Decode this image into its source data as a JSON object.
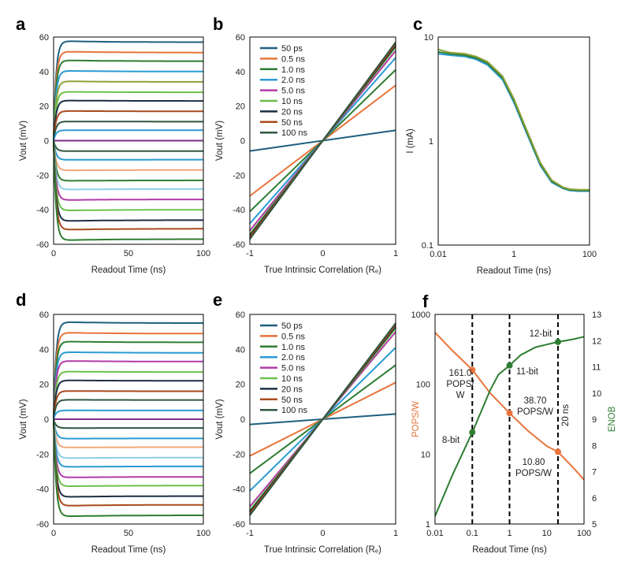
{
  "colors": {
    "ps50": "#1f5f7f",
    "ns05": "#e8743b",
    "ns1": "#2e7d32",
    "ns2": "#2b9bd3",
    "ns5": "#b23aa8",
    "ns10": "#6cc04a",
    "ns20": "#1b2f44",
    "ns50": "#a94a1c",
    "ns100": "#2f5640",
    "salmon": "#f2a77a",
    "lightblue": "#8fcfe8",
    "gold": "#8ea13a",
    "purple": "#7a2c8a",
    "orangeAxis": "#e8743b",
    "greenAxis": "#2e7d32",
    "dashed": "#000000"
  },
  "chart_data": [
    {
      "panel": "a",
      "type": "line",
      "xlabel": "Readout Time (ns)",
      "ylabel": "Vout (mV)",
      "xlim": [
        0,
        100
      ],
      "ylim": [
        -60,
        60
      ],
      "xticks": [
        "0",
        "50",
        "100"
      ],
      "yticks": [
        "-60",
        "-40",
        "-20",
        "0",
        "20",
        "40",
        "60"
      ],
      "settled_levels": [
        57,
        51,
        46,
        40,
        34,
        28,
        23,
        17,
        11,
        6,
        0,
        -6,
        -11,
        -17,
        -23,
        -28,
        -34,
        -40,
        -46,
        -51,
        -57
      ],
      "level_colors": [
        "ps50",
        "ns05",
        "ns1",
        "ns2",
        "gold",
        "ns10",
        "ns20",
        "ns50",
        "ns100",
        "ns2",
        "purple",
        "ns100",
        "ns2",
        "salmon",
        "ns1",
        "lightblue",
        "ns5",
        "ns10",
        "ns20",
        "ns50",
        "ns1"
      ]
    },
    {
      "panel": "b",
      "type": "line",
      "xlabel": "True Intrinsic Correlation (Rₑ)",
      "ylabel": "Vout (mV)",
      "xlim": [
        -1,
        1
      ],
      "ylim": [
        -60,
        60
      ],
      "xticks": [
        "-1",
        "0",
        "1"
      ],
      "yticks": [
        "-60",
        "-40",
        "-20",
        "0",
        "20",
        "40",
        "60"
      ],
      "legend_position": "top-left",
      "series": [
        {
          "name": "50 ps",
          "slope": 6,
          "color": "ps50"
        },
        {
          "name": "0.5 ns",
          "slope": 32,
          "color": "ns05"
        },
        {
          "name": "1.0 ns",
          "slope": 41,
          "color": "ns1"
        },
        {
          "name": "2.0 ns",
          "slope": 48,
          "color": "ns2"
        },
        {
          "name": "5.0 ns",
          "slope": 52,
          "color": "ns5"
        },
        {
          "name": "10 ns",
          "slope": 54,
          "color": "ns10"
        },
        {
          "name": "20 ns",
          "slope": 55,
          "color": "ns20"
        },
        {
          "name": "50 ns",
          "slope": 56,
          "color": "ns50"
        },
        {
          "name": "100 ns",
          "slope": 57,
          "color": "ns100"
        }
      ]
    },
    {
      "panel": "c",
      "type": "line",
      "xlabel": "Readout Time (ns)",
      "ylabel": "I (mA)",
      "xscale": "log",
      "yscale": "log",
      "xlim": [
        0.01,
        100
      ],
      "ylim": [
        0.1,
        10
      ],
      "xticks": [
        "0.01",
        "1",
        "100"
      ],
      "yticks": [
        "0.1",
        "1",
        "10"
      ],
      "x": [
        0.01,
        0.02,
        0.05,
        0.1,
        0.2,
        0.5,
        1,
        2,
        5,
        10,
        20,
        30,
        50,
        100
      ],
      "series": [
        {
          "name": "gold",
          "y": [
            7.6,
            7.1,
            6.9,
            6.5,
            5.8,
            4.2,
            2.55,
            1.38,
            0.62,
            0.42,
            0.36,
            0.345,
            0.34,
            0.34
          ]
        },
        {
          "name": "green",
          "y": [
            7.2,
            6.9,
            6.7,
            6.3,
            5.6,
            4.05,
            2.45,
            1.33,
            0.6,
            0.41,
            0.355,
            0.34,
            0.335,
            0.335
          ]
        },
        {
          "name": "blue",
          "y": [
            6.9,
            6.7,
            6.5,
            6.1,
            5.4,
            3.9,
            2.35,
            1.28,
            0.58,
            0.4,
            0.35,
            0.335,
            0.33,
            0.33
          ]
        }
      ]
    },
    {
      "panel": "d",
      "type": "line",
      "xlabel": "Readout Time (ns)",
      "ylabel": "Vout (mV)",
      "xlim": [
        0,
        100
      ],
      "ylim": [
        -60,
        60
      ],
      "xticks": [
        "0",
        "50",
        "100"
      ],
      "yticks": [
        "-60",
        "-40",
        "-20",
        "0",
        "20",
        "40",
        "60"
      ],
      "settled_levels": [
        55,
        49,
        44,
        38,
        33,
        27,
        22,
        16,
        11,
        5,
        0,
        -5,
        -11,
        -16,
        -22,
        -27,
        -33,
        -38,
        -44,
        -49,
        -55
      ],
      "level_colors": [
        "ps50",
        "ns05",
        "ns1",
        "ns2",
        "ns5",
        "ns10",
        "ns20",
        "ns50",
        "ns100",
        "ns2",
        "purple",
        "ns100",
        "ns2",
        "salmon",
        "lightblue",
        "ns2",
        "ns5",
        "ns10",
        "ns20",
        "ns50",
        "ns1"
      ]
    },
    {
      "panel": "e",
      "type": "line",
      "xlabel": "True Intrinsic Correlation (Rₑ)",
      "ylabel": "Vout (mV)",
      "xlim": [
        -1,
        1
      ],
      "ylim": [
        -60,
        60
      ],
      "xticks": [
        "-1",
        "0",
        "1"
      ],
      "yticks": [
        "-60",
        "-40",
        "-20",
        "0",
        "20",
        "40",
        "60"
      ],
      "legend_position": "top-left",
      "series": [
        {
          "name": "50 ps",
          "slope": 3,
          "color": "ps50"
        },
        {
          "name": "0.5 ns",
          "slope": 21,
          "color": "ns05"
        },
        {
          "name": "1.0 ns",
          "slope": 31,
          "color": "ns1"
        },
        {
          "name": "2.0 ns",
          "slope": 41,
          "color": "ns2"
        },
        {
          "name": "5.0 ns",
          "slope": 50,
          "color": "ns5"
        },
        {
          "name": "10 ns",
          "slope": 52,
          "color": "ns10"
        },
        {
          "name": "20 ns",
          "slope": 53,
          "color": "ns20"
        },
        {
          "name": "50 ns",
          "slope": 54,
          "color": "ns50"
        },
        {
          "name": "100 ns",
          "slope": 55,
          "color": "ns100"
        }
      ]
    },
    {
      "panel": "f",
      "type": "line",
      "xlabel": "Readout Time (ns)",
      "ylabel": "POPS/W",
      "y2label": "ENOB",
      "xscale": "log",
      "yscale": "log",
      "xlim": [
        0.01,
        100
      ],
      "ylim": [
        1,
        1000
      ],
      "y2lim": [
        5,
        13
      ],
      "xticks": [
        "0.01",
        "0.1",
        "1",
        "10",
        "100"
      ],
      "yticks": [
        "1",
        "10",
        "100",
        "1000"
      ],
      "y2ticks": [
        "5",
        "6",
        "7",
        "8",
        "9",
        "10",
        "11",
        "12",
        "13"
      ],
      "vlines": [
        0.1,
        1,
        20
      ],
      "series": [
        {
          "name": "POPS/W",
          "axis": "left",
          "color": "ns05",
          "x": [
            0.01,
            0.03,
            0.1,
            0.3,
            1,
            3,
            10,
            20,
            50,
            100
          ],
          "y": [
            550,
            300,
            161,
            75,
            38.7,
            22,
            13,
            10.8,
            6.5,
            4.3
          ]
        },
        {
          "name": "ENOB",
          "axis": "right",
          "color": "ns1",
          "x": [
            0.01,
            0.03,
            0.1,
            0.3,
            0.5,
            1,
            2,
            5,
            10,
            20,
            50,
            100
          ],
          "y": [
            5.3,
            6.9,
            8.5,
            10.1,
            10.7,
            11.05,
            11.45,
            11.75,
            11.85,
            11.95,
            12.05,
            12.15
          ]
        }
      ],
      "markers": [
        {
          "axis": "left",
          "x": 0.1,
          "y": 161
        },
        {
          "axis": "left",
          "x": 1,
          "y": 38.7
        },
        {
          "axis": "left",
          "x": 20,
          "y": 10.8
        },
        {
          "axis": "right",
          "x": 0.1,
          "y": 8.5
        },
        {
          "axis": "right",
          "x": 1,
          "y": 11.05
        },
        {
          "axis": "right",
          "x": 20,
          "y": 11.95
        }
      ],
      "annotations": {
        "pops_01_line1": "161.0",
        "pops_01_line2": "POPS/",
        "pops_01_line3": "W",
        "pops_1_line1": "38.70",
        "pops_1_line2": "POPS/W",
        "pops_20_line1": "10.80",
        "pops_20_line2": "POPS/W",
        "enob_01": "8-bit",
        "enob_1": "11-bit",
        "enob_20": "12-bit",
        "vline_label": "20 ns"
      }
    }
  ],
  "panel_letters": [
    "a",
    "b",
    "c",
    "d",
    "e",
    "f"
  ]
}
